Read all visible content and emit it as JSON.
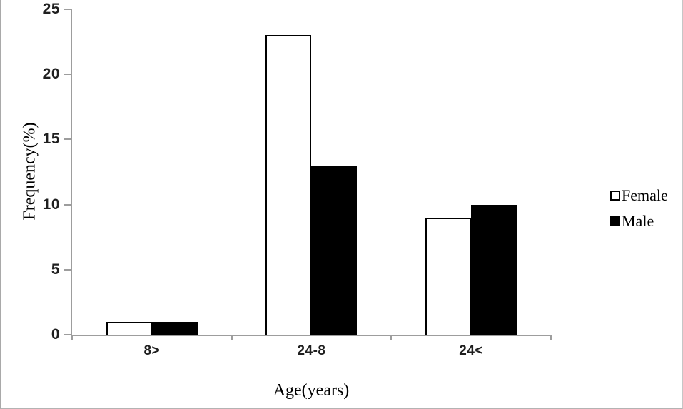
{
  "chart_data": {
    "type": "bar",
    "title": "",
    "categories": [
      "8>",
      "24-8",
      "24<"
    ],
    "series": [
      {
        "name": "Female",
        "fill": "#ffffff",
        "values": [
          1,
          23,
          9
        ]
      },
      {
        "name": "Male",
        "fill": "#000000",
        "values": [
          1,
          13,
          10
        ]
      }
    ],
    "xlabel": "Age(years)",
    "ylabel": "Frequency(%)",
    "ylim": [
      0,
      25
    ],
    "yticks": [
      0,
      5,
      10,
      15,
      20,
      25
    ],
    "grid": false,
    "legend_position": "right"
  },
  "colors": {
    "axis": "#9d9d9d",
    "bar_border": "#000000",
    "tick_label": "#1f1f1f",
    "frame_border": "#b3b3b3"
  }
}
